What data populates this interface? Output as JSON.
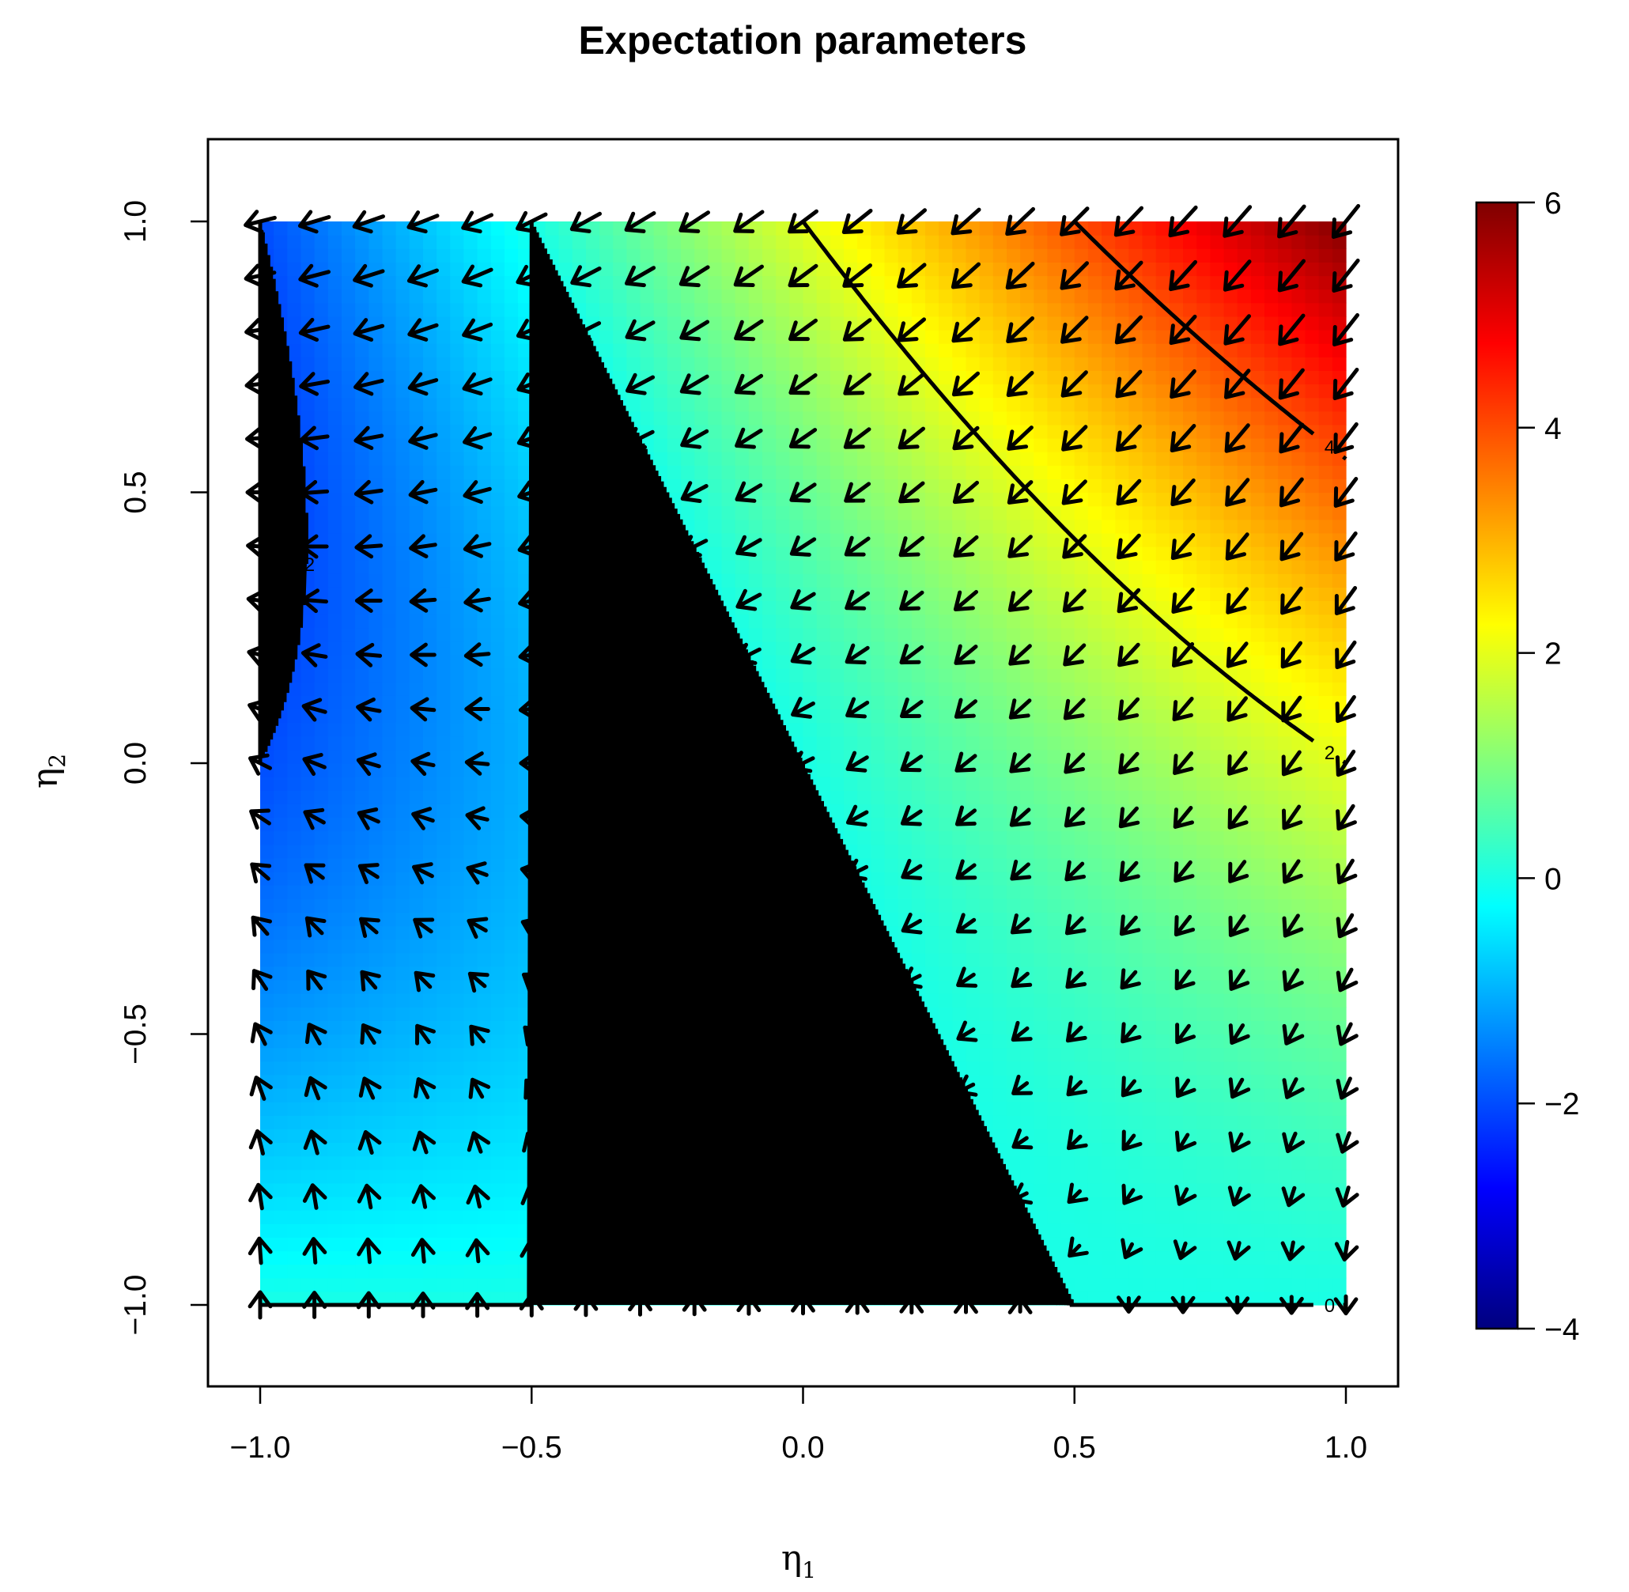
{
  "chart_data": {
    "type": "heatmap",
    "title": "Expectation parameters",
    "xlabel": "η",
    "xlabel_sub": "1",
    "ylabel": "η",
    "ylabel_sub": "2",
    "xlim": [
      -1,
      1
    ],
    "ylim": [
      -1,
      1
    ],
    "x_ticks": [
      -1.0,
      -0.5,
      0.0,
      0.5,
      1.0
    ],
    "x_tick_labels": [
      "−1.0",
      "−0.5",
      "0.0",
      "0.5",
      "1.0"
    ],
    "y_ticks": [
      -1.0,
      -0.5,
      0.0,
      0.5,
      1.0
    ],
    "y_tick_labels": [
      "−1.0",
      "−0.5",
      "0.0",
      "0.5",
      "1.0"
    ],
    "surface": "z = 2*η1 + 2*η1*η2 + η2 + η2^2",
    "colorbar": {
      "range": [
        -4,
        6
      ],
      "ticks": [
        6,
        4,
        2,
        0,
        -2,
        -4
      ],
      "tick_labels": [
        "6",
        "4",
        "2",
        "0",
        "−2",
        "−4"
      ],
      "colormap": [
        "#00007F",
        "#0000FF",
        "#007FFF",
        "#00FFFF",
        "#7FFF7F",
        "#FFFF00",
        "#FF7F00",
        "#FF0000",
        "#7F0000"
      ]
    },
    "contours": [
      {
        "level": -2,
        "label": "-2"
      },
      {
        "level": 0,
        "label": "0"
      },
      {
        "level": 2,
        "label": "2"
      },
      {
        "level": 4,
        "label": "4"
      }
    ],
    "vector_field": {
      "grid_x": [
        -1.0,
        -0.9,
        -0.8,
        -0.7,
        -0.6,
        -0.5,
        -0.4,
        -0.3,
        -0.2,
        -0.1,
        0.0,
        0.1,
        0.2,
        0.3,
        0.4,
        0.5,
        0.6,
        0.7,
        0.8,
        0.9,
        1.0
      ],
      "grid_y": [
        1.0,
        0.9,
        0.8,
        0.7,
        0.6,
        0.5,
        0.4,
        0.3,
        0.2,
        0.1,
        0.0,
        -0.1,
        -0.2,
        -0.3,
        -0.4,
        -0.5,
        -0.6,
        -0.7,
        -0.8,
        -0.9,
        -1.0
      ],
      "direction": "negative gradient of z"
    }
  }
}
